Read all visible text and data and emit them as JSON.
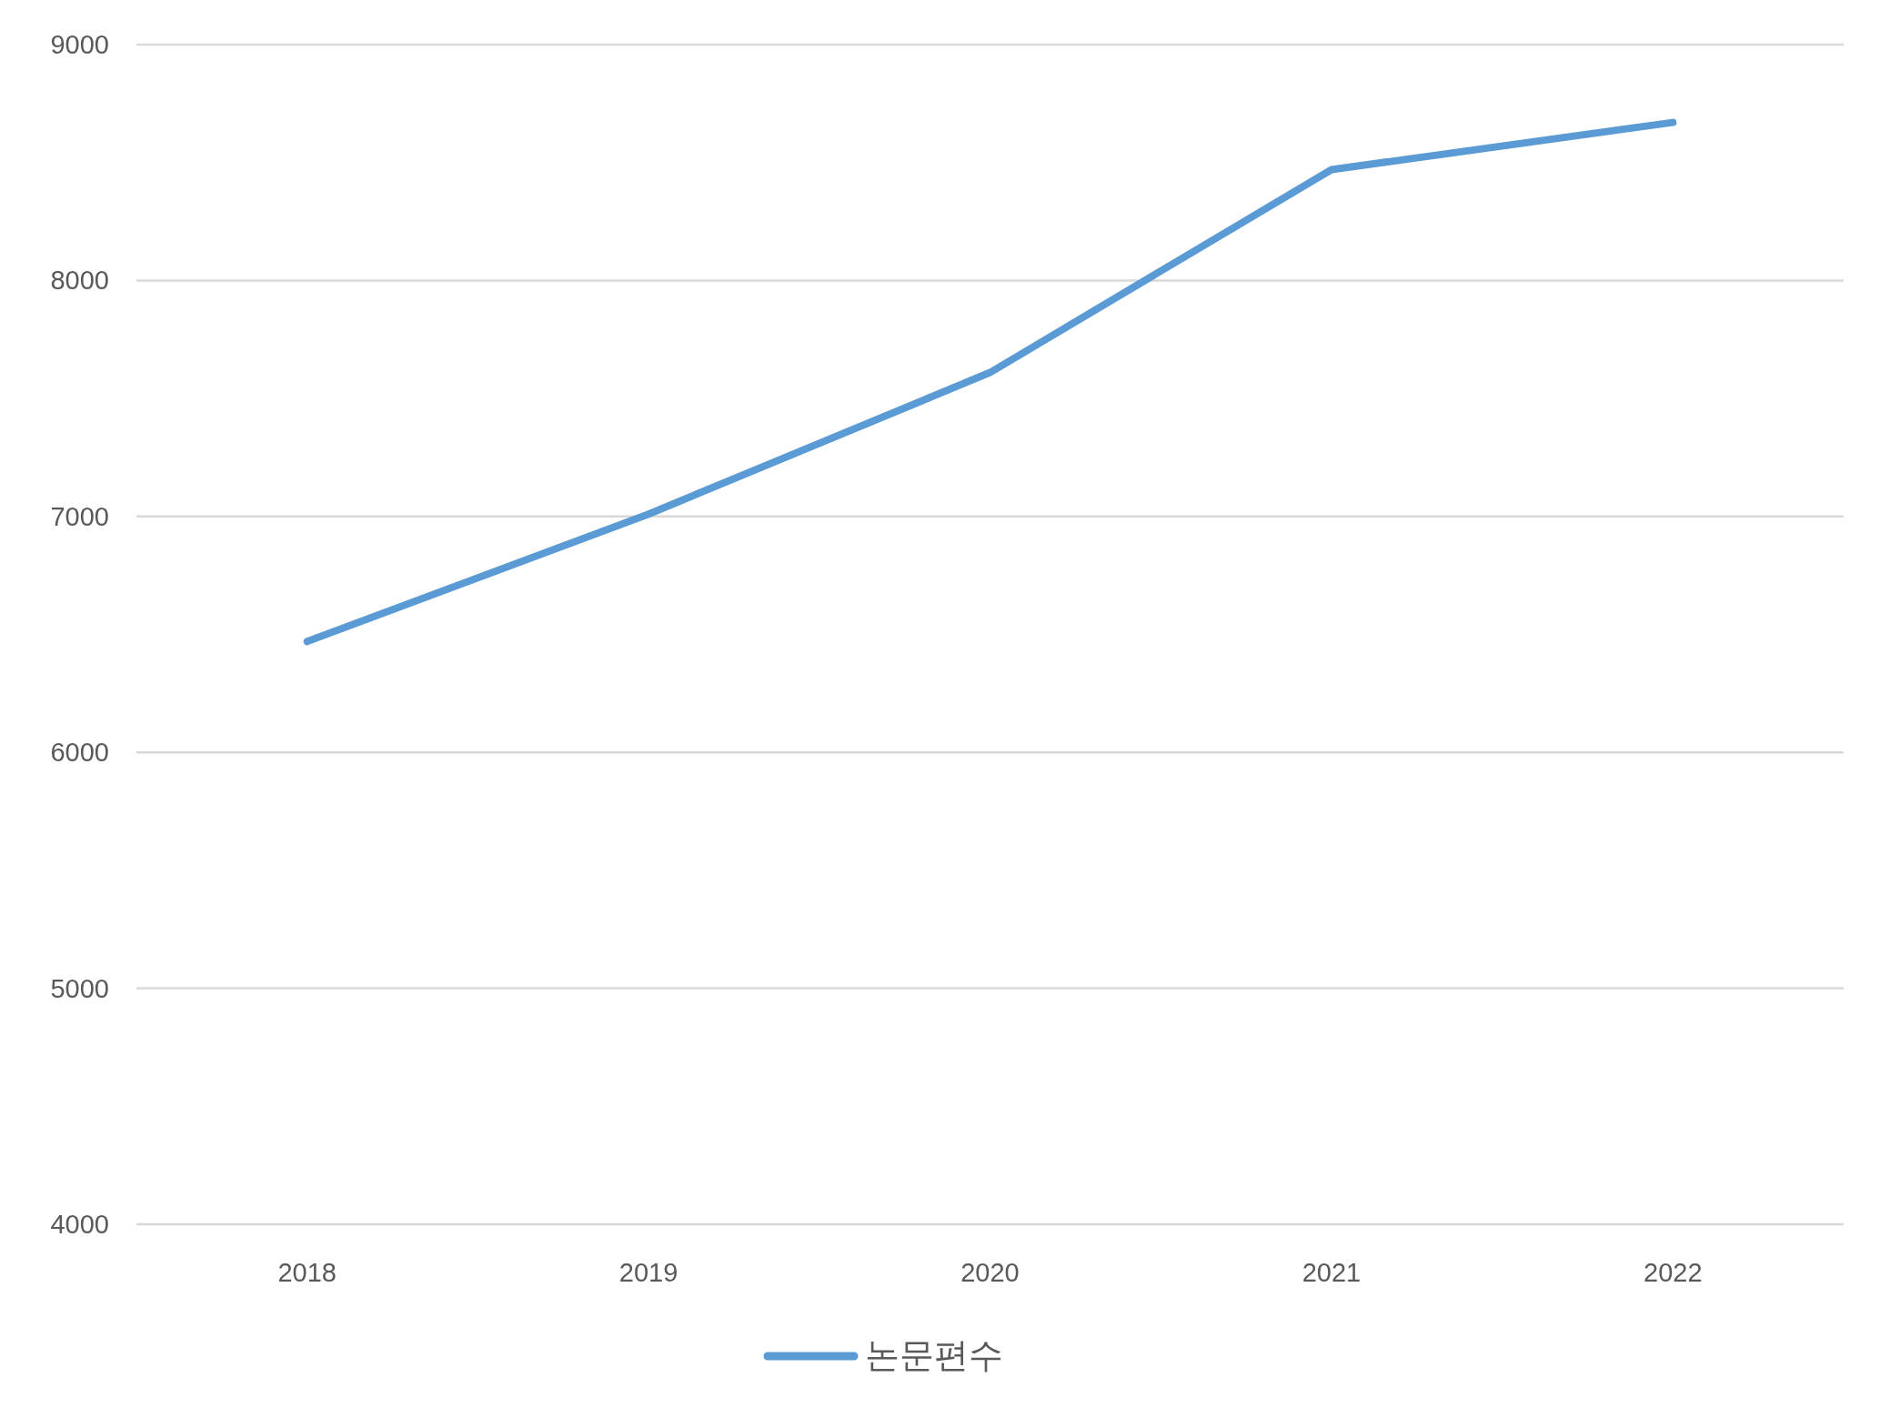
{
  "chart_data": {
    "type": "line",
    "categories": [
      "2018",
      "2019",
      "2020",
      "2021",
      "2022"
    ],
    "series": [
      {
        "name": "논문편수",
        "color": "#5b9bd5",
        "values": [
          6470,
          7010,
          7610,
          8470,
          8670
        ]
      }
    ],
    "ylim": [
      4000,
      9000
    ],
    "yticks": [
      4000,
      5000,
      6000,
      7000,
      8000,
      9000
    ],
    "grid": "y",
    "legend": "bottom",
    "marker": "none",
    "line_style": "solid"
  }
}
